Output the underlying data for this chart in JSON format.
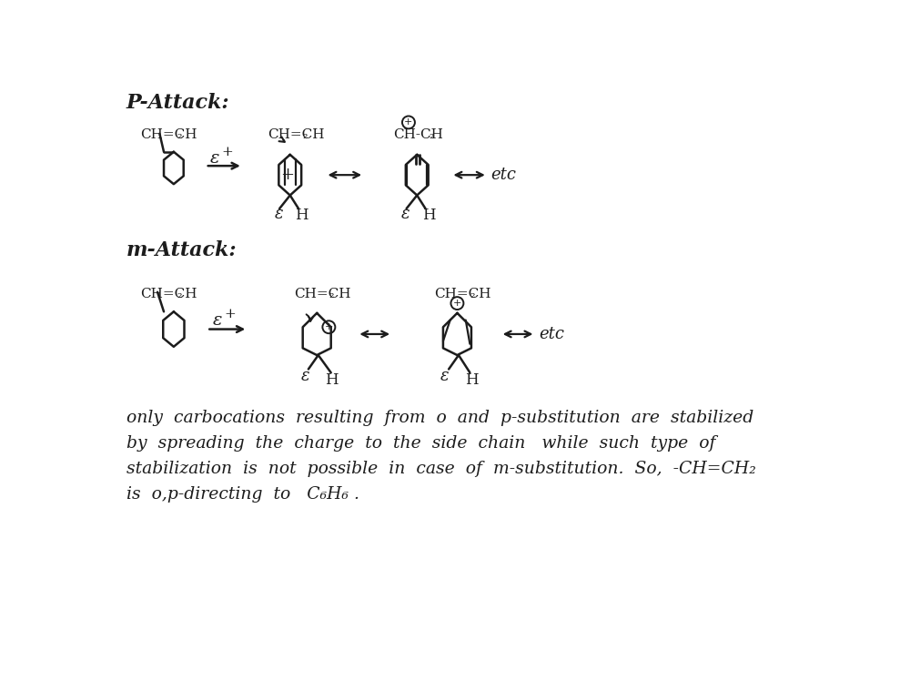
{
  "background_color": "#ffffff",
  "figsize": [
    10.0,
    7.48
  ],
  "dpi": 100,
  "ink": "#1c1c1c",
  "p_attack_title": "P-Attack:",
  "m_attack_title": "m-Attack:",
  "line1": "only  carbocations  resulting  from  o  and  p-substitution  are  stabilized",
  "line2": "by  spreading  the  charge  to  the  side  chain   while  such  type  of",
  "line3": "stabilization  is  not  possible  in  case  of  m-substitution.  So,  -CH=CH₂",
  "line4": "is  o,p-directing  to   C₆H₆ ."
}
